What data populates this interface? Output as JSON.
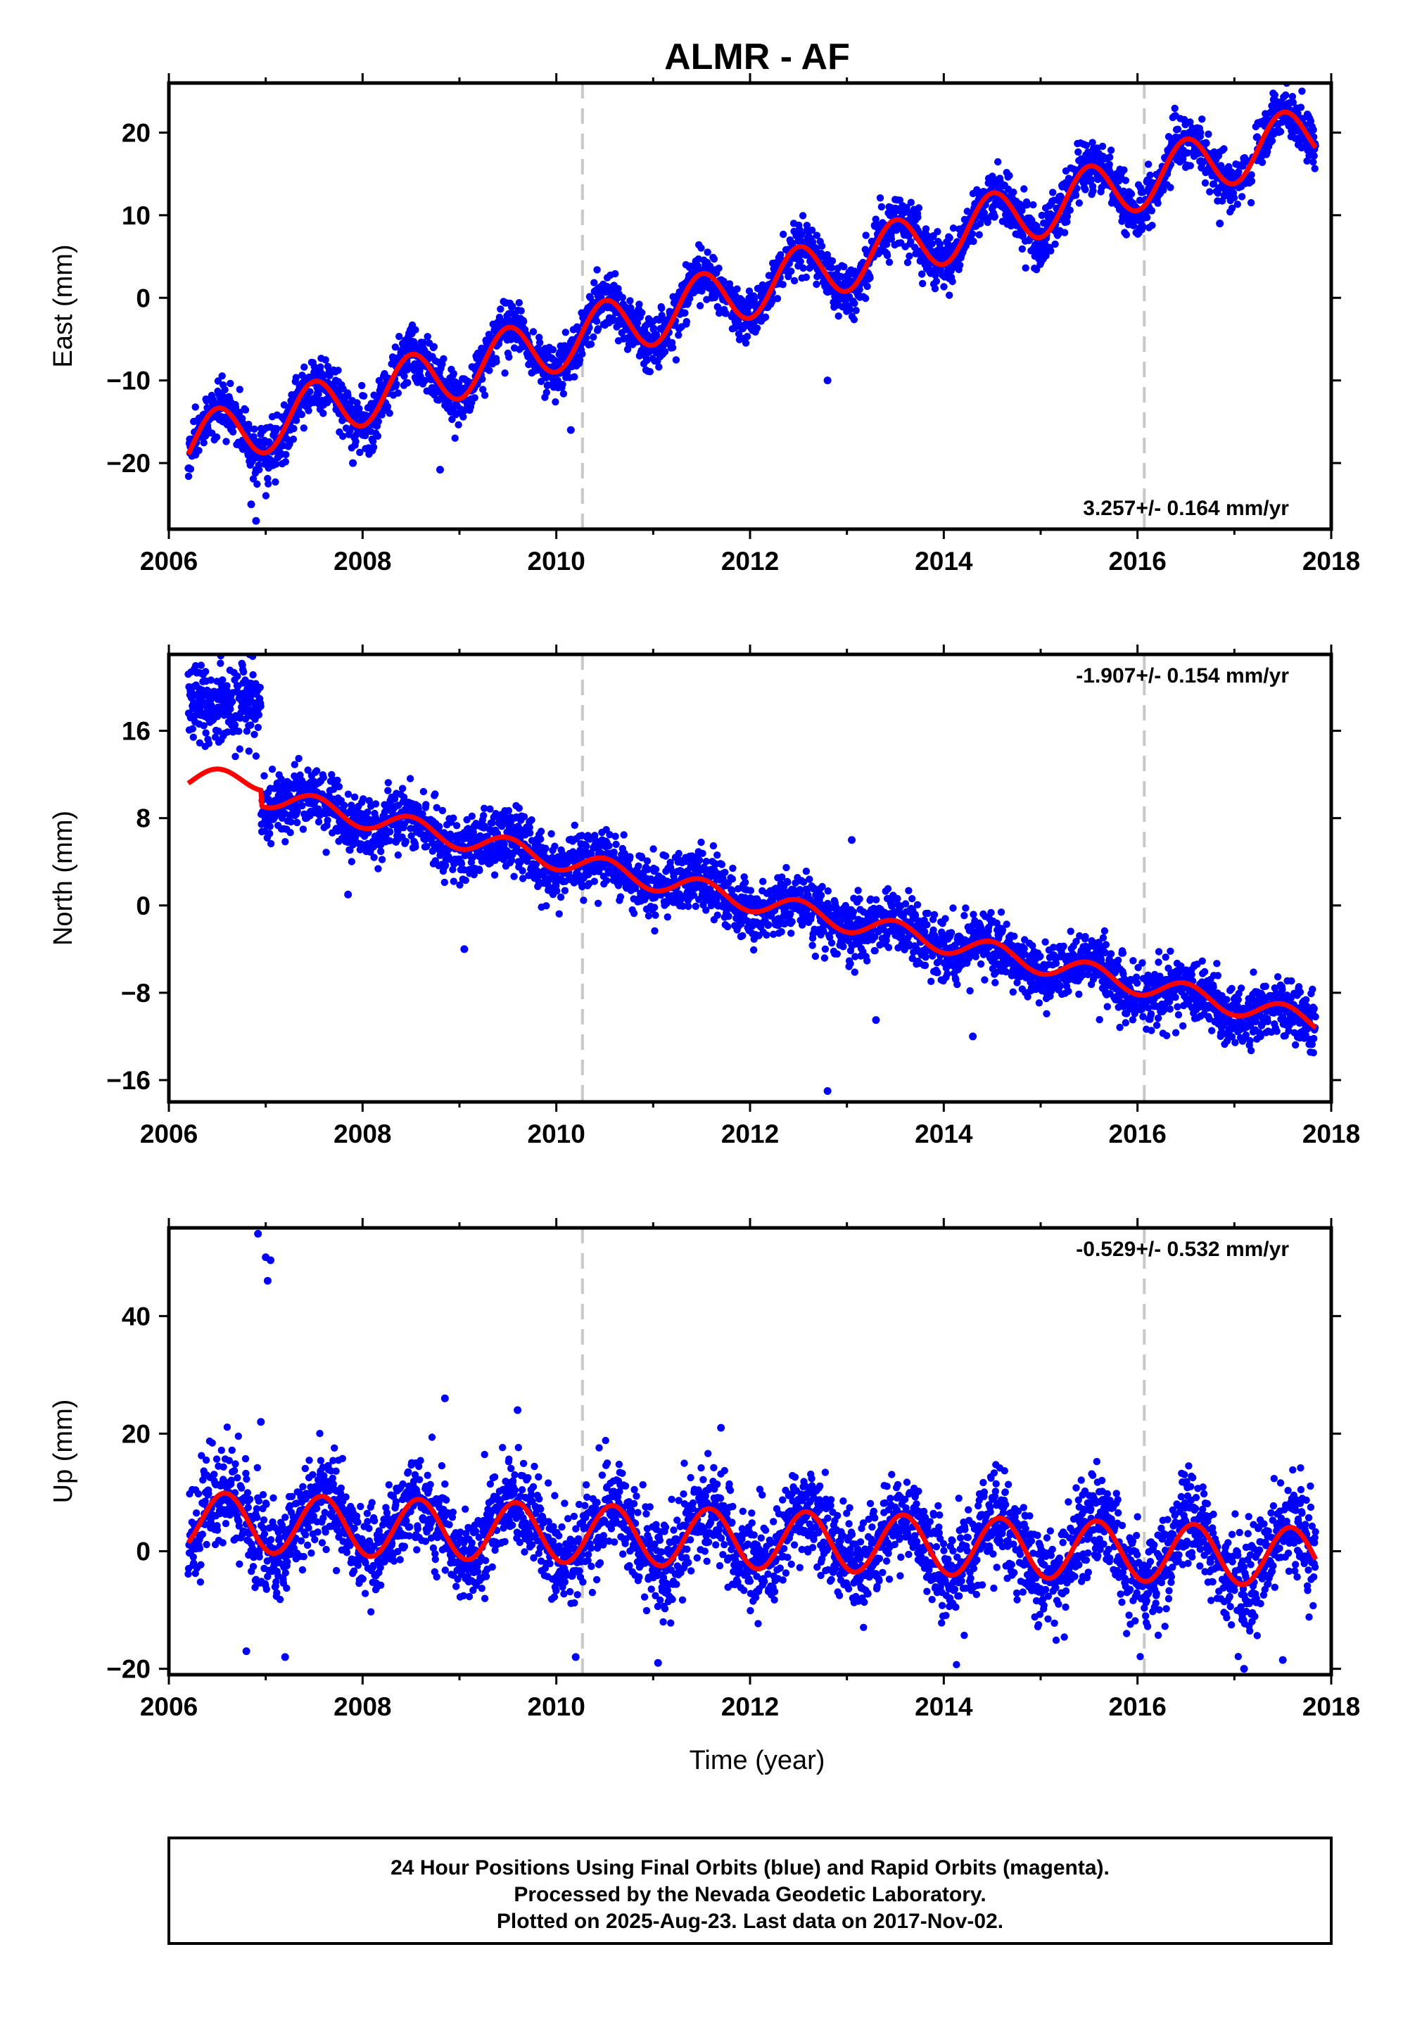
{
  "chart_title": "ALMR - AF",
  "xlabel": "Time (year)",
  "footer": {
    "line1": "24 Hour Positions Using Final Orbits (blue) and Rapid Orbits (magenta).",
    "line2": "Processed by the Nevada Geodetic Laboratory.",
    "line3": "Plotted on 2025-Aug-23. Last data on 2017-Nov-02."
  },
  "colors": {
    "data_points": "#0000ff",
    "model_fit": "#ff0000",
    "equipment_change_line": "#c8c8c8",
    "frame": "#000000"
  },
  "chart_data": [
    {
      "type": "scatter",
      "component": "East",
      "ylabel": "East (mm)",
      "xlim": [
        2006,
        2018
      ],
      "ylim": [
        -28,
        26
      ],
      "xticks": [
        2006,
        2008,
        2010,
        2012,
        2014,
        2016,
        2018
      ],
      "yticks": [
        -20,
        -10,
        0,
        10,
        20
      ],
      "rate_label": "3.257+/- 0.164 mm/yr",
      "rate_position": "bottom-right",
      "offset_lines": [
        2010.27,
        2016.07
      ],
      "data_start": 2006.2,
      "data_end": 2017.84,
      "model": {
        "segments": [
          {
            "from": 2006.2,
            "to": 2017.84,
            "intercept_at_2006": -18.5,
            "rate": 3.257,
            "annual_amplitude": 3.5,
            "peak_phase": 0.5
          }
        ]
      },
      "outliers": [
        {
          "x": 2006.9,
          "y": -27
        },
        {
          "x": 2006.85,
          "y": -25
        },
        {
          "x": 2007.9,
          "y": -20
        },
        {
          "x": 2008.8,
          "y": -20.8
        },
        {
          "x": 2010.15,
          "y": -16
        },
        {
          "x": 2012.8,
          "y": -10
        },
        {
          "x": 2016.85,
          "y": 9
        }
      ]
    },
    {
      "type": "scatter",
      "component": "North",
      "ylabel": "North (mm)",
      "xlim": [
        2006,
        2018
      ],
      "ylim": [
        -18,
        23
      ],
      "xticks": [
        2006,
        2008,
        2010,
        2012,
        2014,
        2016,
        2018
      ],
      "yticks": [
        -16,
        -8,
        0,
        8,
        16
      ],
      "rate_label": "-1.907+/- 0.154 mm/yr",
      "rate_position": "top-right",
      "offset_lines": [
        2010.27,
        2016.07
      ],
      "data_start": 2006.2,
      "data_end": 2017.84,
      "model": {
        "segments": [
          {
            "from": 2006.2,
            "to": 2006.95,
            "intercept_at_2006": 11.5,
            "rate": 0.0,
            "annual_amplitude": 1.0,
            "peak_phase": 0.5
          },
          {
            "from": 2006.95,
            "to": 2017.84,
            "intercept_at_2006": 11.9,
            "rate": -1.907,
            "annual_amplitude": 1.0,
            "peak_phase": 0.5
          }
        ]
      },
      "early_block": {
        "from": 2006.2,
        "to": 2006.95,
        "mean": 18.5,
        "spread": 1.8
      },
      "outliers": [
        {
          "x": 2012.8,
          "y": -17
        },
        {
          "x": 2013.05,
          "y": 6
        },
        {
          "x": 2009.05,
          "y": -4
        },
        {
          "x": 2007.85,
          "y": 1
        },
        {
          "x": 2014.3,
          "y": -12
        },
        {
          "x": 2013.3,
          "y": -10.5
        }
      ]
    },
    {
      "type": "scatter",
      "component": "Up",
      "ylabel": "Up (mm)",
      "xlim": [
        2006,
        2018
      ],
      "ylim": [
        -21,
        55
      ],
      "xticks": [
        2006,
        2008,
        2010,
        2012,
        2014,
        2016,
        2018
      ],
      "yticks": [
        -20,
        0,
        20,
        40
      ],
      "rate_label": "-0.529+/- 0.532 mm/yr",
      "rate_position": "top-right",
      "offset_lines": [
        2010.27,
        2016.07
      ],
      "data_start": 2006.2,
      "data_end": 2017.84,
      "model": {
        "segments": [
          {
            "from": 2006.2,
            "to": 2017.84,
            "intercept_at_2006": 5.2,
            "rate": -0.529,
            "annual_amplitude": 5.0,
            "peak_phase": 0.58
          }
        ]
      },
      "outliers": [
        {
          "x": 2006.92,
          "y": 54
        },
        {
          "x": 2007.0,
          "y": 50
        },
        {
          "x": 2007.05,
          "y": 49.5
        },
        {
          "x": 2007.02,
          "y": 46
        },
        {
          "x": 2006.95,
          "y": 22
        },
        {
          "x": 2008.85,
          "y": 26
        },
        {
          "x": 2009.6,
          "y": 24
        },
        {
          "x": 2011.7,
          "y": 21
        },
        {
          "x": 2007.2,
          "y": -18
        },
        {
          "x": 2006.8,
          "y": -17
        },
        {
          "x": 2010.2,
          "y": -18
        },
        {
          "x": 2011.05,
          "y": -19
        },
        {
          "x": 2017.1,
          "y": -20
        },
        {
          "x": 2017.5,
          "y": -18.5
        }
      ]
    }
  ]
}
